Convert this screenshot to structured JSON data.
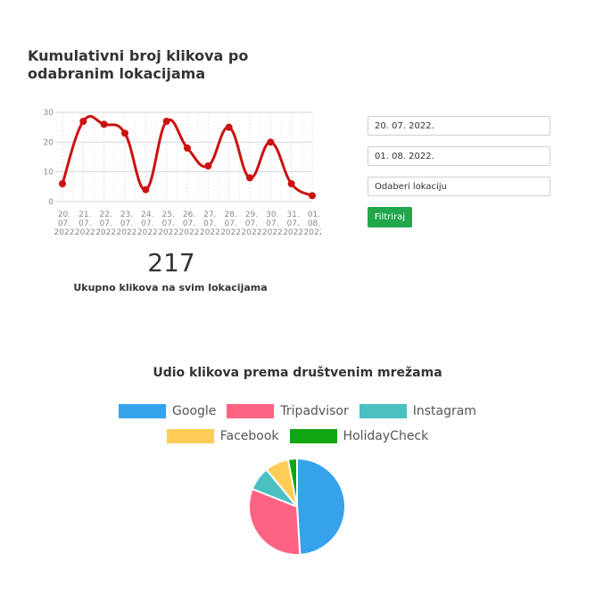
{
  "main_title": "Kumulativni broj klikova po odabranim lokacijama",
  "total": {
    "value": "217",
    "label": "Ukupno klikova na svim lokacijama"
  },
  "filters": {
    "date_from": "20. 07. 2022.",
    "date_to": "01. 08. 2022.",
    "location_placeholder": "Odaberi lokaciju",
    "button_label": "Filtriraj",
    "button_color": "#21a64a"
  },
  "social_title": "Udio klikova prema društvenim mrežama",
  "chart_data": [
    {
      "type": "line",
      "title": "",
      "xlabel": "",
      "ylabel": "",
      "x": [
        "20. 07. 2022",
        "21. 07. 2022",
        "22. 07. 2022",
        "23. 07. 2022",
        "24. 07. 2022",
        "25. 07. 2022",
        "26. 07. 2022",
        "27. 07. 2022",
        "28. 07. 2022",
        "29. 07. 2022",
        "30. 07. 2022",
        "31. 07. 2022",
        "01. 08. 2022"
      ],
      "series": [
        {
          "values": [
            6,
            27,
            26,
            23,
            4,
            27,
            18,
            12,
            25,
            8,
            20,
            6,
            2
          ],
          "color": "#cc1111"
        }
      ],
      "ylim": [
        0,
        30
      ],
      "yticks": [
        0,
        10,
        20,
        30
      ],
      "grid": true
    },
    {
      "type": "pie",
      "title": "",
      "legend_position": "top",
      "slices": [
        {
          "label": "Google",
          "value": 49,
          "color": "#36a2eb"
        },
        {
          "label": "Tripadvisor",
          "value": 32,
          "color": "#ff6384"
        },
        {
          "label": "Instagram",
          "value": 8,
          "color": "#4bc0c0"
        },
        {
          "label": "Facebook",
          "value": 8,
          "color": "#ffcd56"
        },
        {
          "label": "HolidayCheck",
          "value": 3,
          "color": "#11a611"
        }
      ]
    }
  ]
}
